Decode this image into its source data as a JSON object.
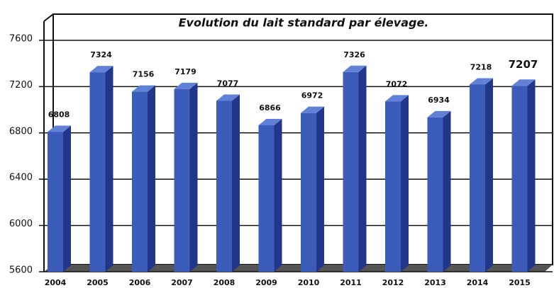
{
  "chart_data": {
    "type": "bar3d",
    "title": "Evolution du lait standard par élevage.",
    "categories": [
      "2004",
      "2005",
      "2006",
      "2007",
      "2008",
      "2009",
      "2010",
      "2011",
      "2012",
      "2013",
      "2014",
      "2015"
    ],
    "values": [
      6808,
      7324,
      7156,
      7179,
      7077,
      6866,
      6972,
      7326,
      7072,
      6934,
      7218,
      7207
    ],
    "color": "#3b5cb8",
    "ylim": [
      5600,
      7600
    ],
    "yticks": [
      5600,
      6000,
      6400,
      6800,
      7200,
      7600
    ],
    "grid": true
  }
}
